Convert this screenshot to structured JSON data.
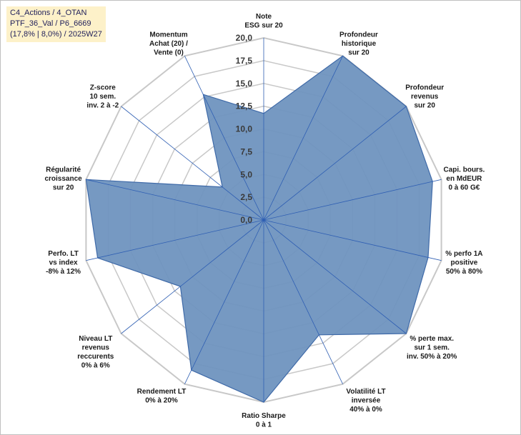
{
  "info_box": {
    "line1": "C4_Actions / 4_OTAN",
    "line2": "PTF_36_Val / P6_6669",
    "line3": "(17,8% | 8,0%) / 2025W27"
  },
  "colors": {
    "fill": "#6f93bf",
    "stroke": "#3f6aa8",
    "grid": "#c8c8c8",
    "spoke": "#2f5fb3"
  },
  "chart_data": {
    "type": "radar",
    "title": "",
    "rmin": 0,
    "rmax": 20,
    "ticks": [
      "0,0",
      "2,5",
      "5,0",
      "7,5",
      "10,0",
      "12,5",
      "15,0",
      "17,5",
      "20,0"
    ],
    "tick_values": [
      0,
      2.5,
      5,
      7.5,
      10,
      12.5,
      15,
      17.5,
      20
    ],
    "grid": true,
    "axes": [
      {
        "lines": [
          "Note",
          "ESG sur 20"
        ],
        "value": 11.7
      },
      {
        "lines": [
          "Profondeur",
          "historique",
          "sur 20"
        ],
        "value": 20
      },
      {
        "lines": [
          "Profondeur",
          "revenus",
          "sur 20"
        ],
        "value": 20
      },
      {
        "lines": [
          "Capi. bours.",
          "en MdEUR",
          "0 à 60 G€"
        ],
        "value": 19
      },
      {
        "lines": [
          "% perfo 1A",
          "positive",
          "50% à 80%"
        ],
        "value": 18.5
      },
      {
        "lines": [
          "% perte max.",
          "sur 1 sem.",
          "inv. 50% à 20%"
        ],
        "value": 20
      },
      {
        "lines": [
          "Volatilité LT",
          "inversée",
          "40% à 0%"
        ],
        "value": 14
      },
      {
        "lines": [
          "Ratio Sharpe",
          "0 à 1"
        ],
        "value": 20
      },
      {
        "lines": [
          "Rendement LT",
          "0% à 20%"
        ],
        "value": 18.3
      },
      {
        "lines": [
          "Niveau LT",
          "revenus",
          "reccurents",
          "0% à 6%"
        ],
        "value": 11.7
      },
      {
        "lines": [
          "Perfo. LT",
          "vs index",
          "-8% à 12%"
        ],
        "value": 18.7
      },
      {
        "lines": [
          "Régularité",
          "croissance",
          "sur 20"
        ],
        "value": 20
      },
      {
        "lines": [
          "Z-score",
          "10 sem.",
          "inv. 2 à -2"
        ],
        "value": 5.8
      },
      {
        "lines": [
          "Momentum",
          "Achat (20) /",
          "Vente (0)"
        ],
        "value": 15.3
      }
    ]
  }
}
